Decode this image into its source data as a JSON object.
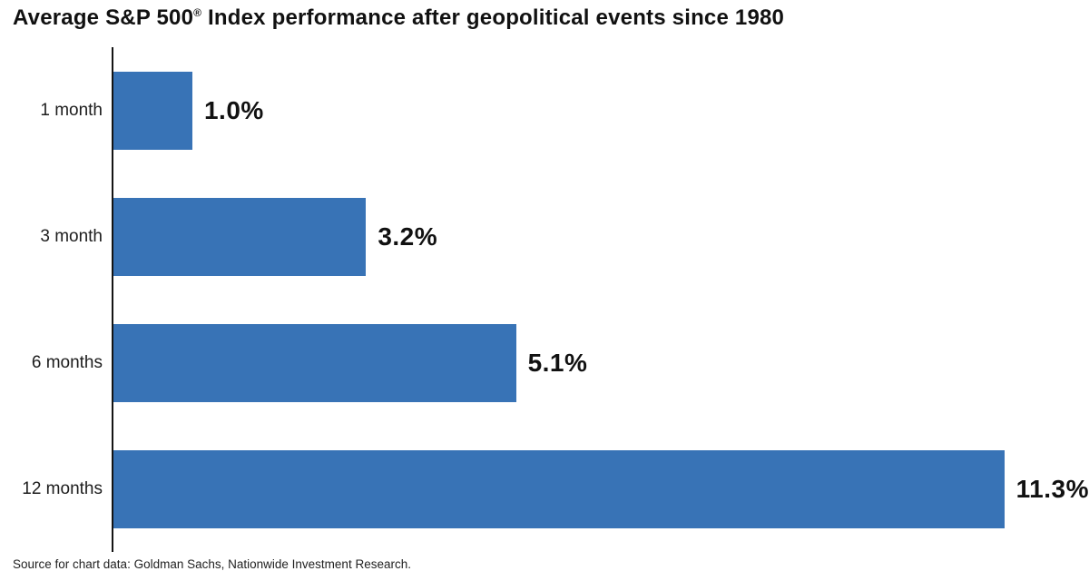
{
  "title": {
    "main": "Average S&P 500",
    "registered": "®",
    "rest": " Index performance after geopolitical events since 1980"
  },
  "source": "Source for chart data: Goldman Sachs, Nationwide Investment Research.",
  "chart_data": {
    "type": "bar",
    "orientation": "horizontal",
    "title": "Average S&P 500® Index performance after geopolitical events since 1980",
    "categories": [
      "1 month",
      "3 month",
      "6 months",
      "12 months"
    ],
    "values": [
      1.0,
      3.2,
      5.1,
      11.3
    ],
    "value_labels": [
      "1.0%",
      "3.2%",
      "5.1%",
      "11.3%"
    ],
    "xlabel": "",
    "ylabel": "",
    "xlim": [
      0,
      12.36
    ],
    "grid": false,
    "legend": "none",
    "bar_color": "#3873b6",
    "axis_color": "#141414",
    "label_color": "#1d1d1d",
    "value_color": "#111111",
    "annotations": "Source for chart data: Goldman Sachs, Nationwide Investment Research."
  }
}
